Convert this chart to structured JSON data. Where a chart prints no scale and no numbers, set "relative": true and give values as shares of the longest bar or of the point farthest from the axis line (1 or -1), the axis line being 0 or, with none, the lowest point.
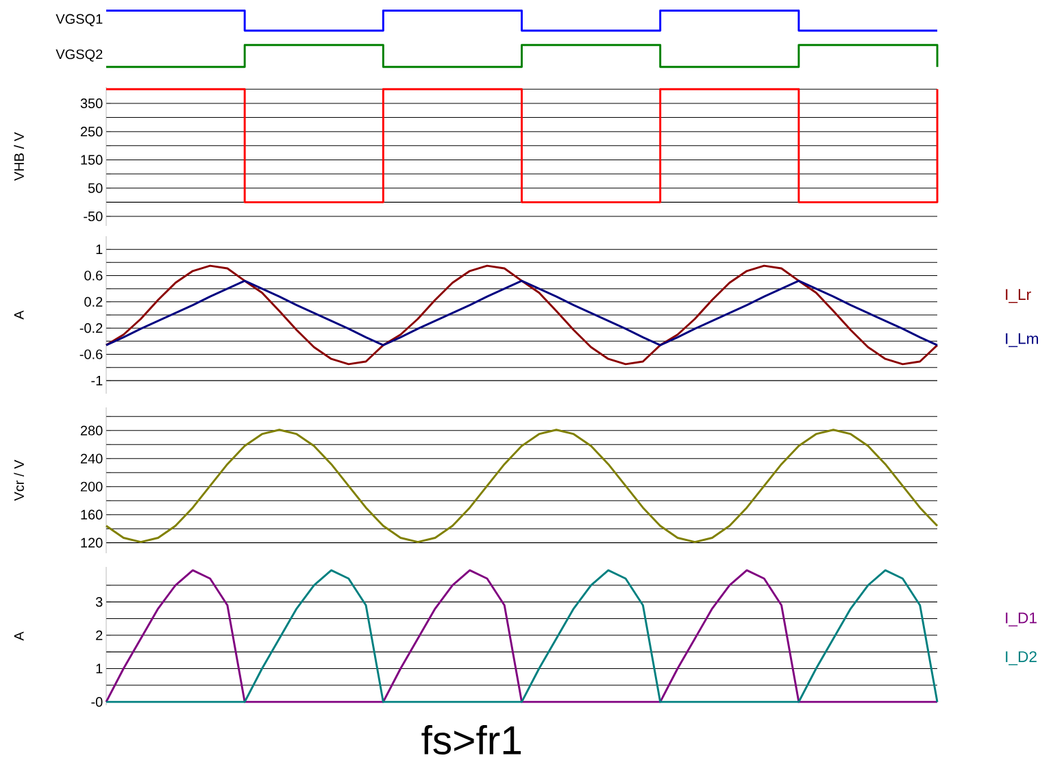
{
  "chart_data": [
    {
      "type": "step",
      "relative": true,
      "ylabel": "VGSQ1",
      "categories": [
        null,
        null,
        null,
        null,
        null,
        null,
        null,
        null,
        null,
        null,
        null,
        null,
        null,
        null,
        null,
        null,
        null,
        null,
        null,
        null,
        null,
        null,
        null,
        null,
        null,
        null,
        null,
        null,
        null,
        null,
        null,
        null,
        null,
        null,
        null,
        null,
        null,
        null,
        null,
        null,
        null,
        null,
        null,
        null,
        null,
        null,
        null,
        null,
        null
      ],
      "series": [
        {
          "color": "#0000ff",
          "values": [
            1,
            1,
            1,
            1,
            1,
            1,
            1,
            1,
            0,
            0,
            0,
            0,
            0,
            0,
            0,
            0,
            1,
            1,
            1,
            1,
            1,
            1,
            1,
            1,
            0,
            0,
            0,
            0,
            0,
            0,
            0,
            0,
            1,
            1,
            1,
            1,
            1,
            1,
            1,
            1,
            0,
            0,
            0,
            0,
            0,
            0,
            0,
            0,
            0
          ]
        }
      ]
    },
    {
      "type": "step",
      "relative": true,
      "ylabel": "VGSQ2",
      "categories": [
        null,
        null,
        null,
        null,
        null,
        null,
        null,
        null,
        null,
        null,
        null,
        null,
        null,
        null,
        null,
        null,
        null,
        null,
        null,
        null,
        null,
        null,
        null,
        null,
        null,
        null,
        null,
        null,
        null,
        null,
        null,
        null,
        null,
        null,
        null,
        null,
        null,
        null,
        null,
        null,
        null,
        null,
        null,
        null,
        null,
        null,
        null,
        null,
        null
      ],
      "series": [
        {
          "color": "#008000",
          "values": [
            0,
            0,
            0,
            0,
            0,
            0,
            0,
            0,
            1,
            1,
            1,
            1,
            1,
            1,
            1,
            1,
            0,
            0,
            0,
            0,
            0,
            0,
            0,
            0,
            1,
            1,
            1,
            1,
            1,
            1,
            1,
            1,
            0,
            0,
            0,
            0,
            0,
            0,
            0,
            0,
            1,
            1,
            1,
            1,
            1,
            1,
            1,
            1,
            0
          ]
        }
      ]
    },
    {
      "type": "step",
      "ylabel": "VHB / V",
      "grid": "y",
      "ylim": [
        -84,
        408
      ],
      "yticks": [
        -50,
        {
          "value": 0,
          "label": null
        },
        50,
        {
          "value": 100,
          "label": null
        },
        150,
        {
          "value": 200,
          "label": null
        },
        250,
        {
          "value": 300,
          "label": null
        },
        350,
        {
          "value": 400,
          "label": null
        }
      ],
      "categories": [
        null,
        null,
        null,
        null,
        null,
        null,
        null,
        null,
        null,
        null,
        null,
        null,
        null,
        null,
        null,
        null,
        null,
        null,
        null,
        null,
        null,
        null,
        null,
        null,
        null,
        null,
        null,
        null,
        null,
        null,
        null,
        null,
        null,
        null,
        null,
        null,
        null,
        null,
        null,
        null,
        null,
        null,
        null,
        null,
        null,
        null,
        null,
        null,
        null
      ],
      "series": [
        {
          "color": "#ff0000",
          "values": [
            400,
            400,
            400,
            400,
            400,
            400,
            400,
            400,
            0,
            0,
            0,
            0,
            0,
            0,
            0,
            0,
            400,
            400,
            400,
            400,
            400,
            400,
            400,
            400,
            0,
            0,
            0,
            0,
            0,
            0,
            0,
            0,
            400,
            400,
            400,
            400,
            400,
            400,
            400,
            400,
            0,
            0,
            0,
            0,
            0,
            0,
            0,
            0,
            400
          ]
        }
      ]
    },
    {
      "type": "line",
      "ylabel": "A",
      "grid": "y",
      "legend": "right",
      "ylim": [
        -1.2,
        1.2
      ],
      "yticks": [
        -1,
        {
          "value": -0.8,
          "label": null
        },
        -0.6,
        {
          "value": -0.4,
          "label": null
        },
        -0.2,
        {
          "value": 0,
          "label": null
        },
        0.2,
        {
          "value": 0.4,
          "label": null
        },
        0.6,
        {
          "value": 0.8,
          "label": null
        },
        1
      ],
      "categories": [
        null,
        null,
        null,
        null,
        null,
        null,
        null,
        null,
        null,
        null,
        null,
        null,
        null,
        null,
        null,
        null,
        null,
        null,
        null,
        null,
        null,
        null,
        null,
        null,
        null,
        null,
        null,
        null,
        null,
        null,
        null,
        null,
        null,
        null,
        null,
        null,
        null,
        null,
        null,
        null,
        null,
        null,
        null,
        null,
        null,
        null,
        null,
        null,
        null
      ],
      "series": [
        {
          "name": "I_Lr",
          "color": "#8b0000",
          "values": [
            -0.46,
            -0.3,
            -0.06,
            0.23,
            0.49,
            0.67,
            0.75,
            0.71,
            0.52,
            0.34,
            0.06,
            -0.23,
            -0.49,
            -0.67,
            -0.75,
            -0.71,
            -0.46,
            -0.3,
            -0.06,
            0.23,
            0.49,
            0.67,
            0.75,
            0.71,
            0.52,
            0.34,
            0.06,
            -0.23,
            -0.49,
            -0.67,
            -0.75,
            -0.71,
            -0.46,
            -0.3,
            -0.06,
            0.23,
            0.49,
            0.67,
            0.75,
            0.71,
            0.52,
            0.34,
            0.06,
            -0.23,
            -0.49,
            -0.67,
            -0.75,
            -0.71,
            -0.46
          ]
        },
        {
          "name": "I_Lm",
          "color": "#000080",
          "values": [
            -0.46,
            -0.34,
            -0.21,
            -0.09,
            0.03,
            0.15,
            0.28,
            0.4,
            0.52,
            0.4,
            0.28,
            0.15,
            0.03,
            -0.09,
            -0.21,
            -0.34,
            -0.46,
            -0.34,
            -0.21,
            -0.09,
            0.03,
            0.15,
            0.28,
            0.4,
            0.52,
            0.4,
            0.28,
            0.15,
            0.03,
            -0.09,
            -0.21,
            -0.34,
            -0.46,
            -0.34,
            -0.21,
            -0.09,
            0.03,
            0.15,
            0.28,
            0.4,
            0.52,
            0.4,
            0.28,
            0.15,
            0.03,
            -0.09,
            -0.21,
            -0.34,
            -0.46
          ]
        }
      ]
    },
    {
      "type": "line",
      "ylabel": "Vcr / V",
      "grid": "y",
      "ylim": [
        105,
        313
      ],
      "yticks": [
        120,
        {
          "value": 140,
          "label": null
        },
        160,
        {
          "value": 180,
          "label": null
        },
        200,
        {
          "value": 220,
          "label": null
        },
        240,
        {
          "value": 260,
          "label": null
        },
        280,
        {
          "value": 300,
          "label": null
        }
      ],
      "categories": [
        null,
        null,
        null,
        null,
        null,
        null,
        null,
        null,
        null,
        null,
        null,
        null,
        null,
        null,
        null,
        null,
        null,
        null,
        null,
        null,
        null,
        null,
        null,
        null,
        null,
        null,
        null,
        null,
        null,
        null,
        null,
        null,
        null,
        null,
        null,
        null,
        null,
        null,
        null,
        null,
        null,
        null,
        null,
        null,
        null,
        null,
        null,
        null,
        null
      ],
      "series": [
        {
          "color": "#808000",
          "values": [
            144,
            127,
            121,
            127,
            144,
            170,
            201,
            232,
            258,
            275,
            281,
            275,
            258,
            232,
            201,
            170,
            144,
            127,
            121,
            127,
            144,
            170,
            201,
            232,
            258,
            275,
            281,
            275,
            258,
            232,
            201,
            170,
            144,
            127,
            121,
            127,
            144,
            170,
            201,
            232,
            258,
            275,
            281,
            275,
            258,
            232,
            201,
            170,
            144
          ]
        }
      ]
    },
    {
      "type": "line",
      "ylabel": "A",
      "grid": "y",
      "legend": "right",
      "ylim": [
        -0.1,
        4.05
      ],
      "yticks": [
        {
          "value": 0,
          "label": "-0"
        },
        {
          "value": 0.5,
          "label": null
        },
        1,
        {
          "value": 1.5,
          "label": null
        },
        2,
        {
          "value": 2.5,
          "label": null
        },
        3,
        {
          "value": 3.5,
          "label": null
        }
      ],
      "annotations": [
        "fs>fr1"
      ],
      "categories": [
        null,
        null,
        null,
        null,
        null,
        null,
        null,
        null,
        null,
        null,
        null,
        null,
        null,
        null,
        null,
        null,
        null,
        null,
        null,
        null,
        null,
        null,
        null,
        null,
        null,
        null,
        null,
        null,
        null,
        null,
        null,
        null,
        null,
        null,
        null,
        null,
        null,
        null,
        null,
        null,
        null,
        null,
        null,
        null,
        null,
        null,
        null,
        null,
        null
      ],
      "series": [
        {
          "name": "I_D1",
          "color": "#800080",
          "values": [
            0,
            1,
            1.9,
            2.8,
            3.5,
            3.95,
            3.7,
            2.9,
            0,
            0,
            0,
            0,
            0,
            0,
            0,
            0,
            0,
            1,
            1.9,
            2.8,
            3.5,
            3.95,
            3.7,
            2.9,
            0,
            0,
            0,
            0,
            0,
            0,
            0,
            0,
            0,
            1,
            1.9,
            2.8,
            3.5,
            3.95,
            3.7,
            2.9,
            0,
            0,
            0,
            0,
            0,
            0,
            0,
            0,
            0
          ]
        },
        {
          "name": "I_D2",
          "color": "#008080",
          "values": [
            0,
            0,
            0,
            0,
            0,
            0,
            0,
            0,
            0,
            1,
            1.9,
            2.8,
            3.5,
            3.95,
            3.7,
            2.9,
            0,
            0,
            0,
            0,
            0,
            0,
            0,
            0,
            0,
            1,
            1.9,
            2.8,
            3.5,
            3.95,
            3.7,
            2.9,
            0,
            0,
            0,
            0,
            0,
            0,
            0,
            0,
            0,
            1,
            1.9,
            2.8,
            3.5,
            3.95,
            3.7,
            2.9,
            0
          ]
        }
      ]
    }
  ]
}
